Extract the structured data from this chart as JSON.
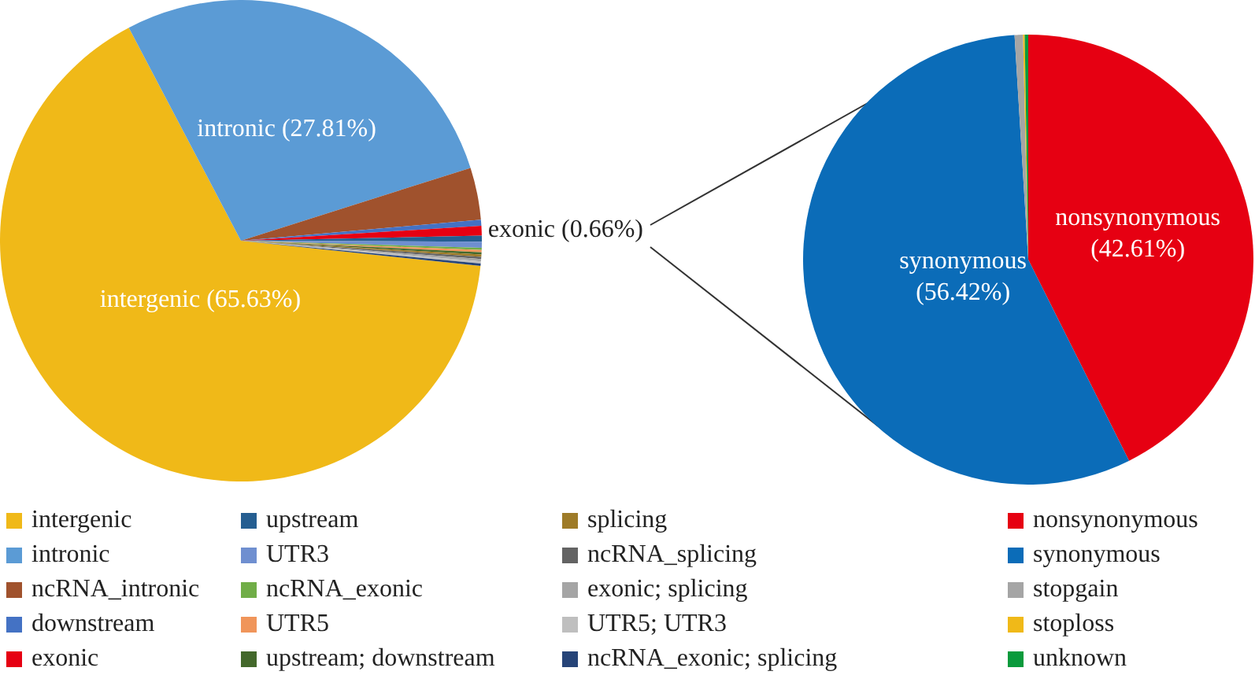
{
  "chart_data": [
    {
      "type": "pie",
      "legend": "bottom",
      "categories": [
        "intergenic",
        "intronic",
        "ncRNA_intronic",
        "downstream",
        "exonic",
        "upstream",
        "UTR3",
        "ncRNA_exonic",
        "UTR5",
        "upstream; downstream",
        "splicing",
        "ncRNA_splicing",
        "exonic; splicing",
        "UTR5; UTR3",
        "ncRNA_exonic; splicing"
      ],
      "values": [
        65.63,
        27.81,
        3.5,
        0.4,
        0.66,
        0.4,
        0.4,
        0.15,
        0.15,
        0.15,
        0.15,
        0.15,
        0.15,
        0.15,
        0.15
      ],
      "colors": [
        "#f0b918",
        "#5b9bd5",
        "#a0522d",
        "#4472c4",
        "#e60012",
        "#255e91",
        "#6f8fd0",
        "#70ad47",
        "#f0955a",
        "#43682b",
        "#9e7b28",
        "#636363",
        "#a5a5a5",
        "#bfbfbf",
        "#264478"
      ],
      "value_labels": [
        "intergenic (65.63%)",
        "intronic (27.81%)",
        null,
        null,
        "exonic (0.66%)",
        null,
        null,
        null,
        null,
        null,
        null,
        null,
        null,
        null,
        null
      ]
    },
    {
      "type": "pie",
      "legend": "bottom",
      "categories": [
        "nonsynonymous",
        "synonymous",
        "stopgain",
        "stoploss",
        "unknown"
      ],
      "values": [
        42.61,
        56.42,
        0.6,
        0.12,
        0.25
      ],
      "colors": [
        "#e60012",
        "#0b6cb8",
        "#a5a5a5",
        "#f0b918",
        "#0a9a3c"
      ],
      "value_labels": [
        "nonsynonymous\n(42.61%)",
        "synonymous\n(56.42%)",
        null,
        null,
        null
      ]
    }
  ]
}
